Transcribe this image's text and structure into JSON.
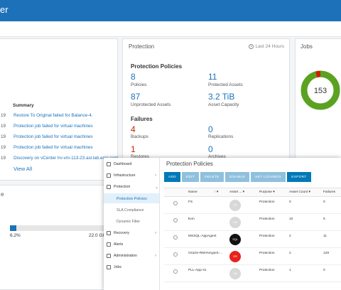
{
  "header": {
    "title": "er"
  },
  "protection": {
    "title": "Protection",
    "range": "Last 24 Hours",
    "policies_section": "Protection Policies",
    "policies_count": "8",
    "policies_label": "Policies",
    "protected_count": "11",
    "protected_label": "Protected Assets",
    "unprotected_count": "87",
    "unprotected_label": "Unprotected Assets",
    "capacity_value": "3.2 TiB",
    "capacity_label": "Asset Capacity",
    "failures_section": "Failures",
    "backups_count": "4",
    "backups_label": "Backups",
    "replications_count": "0",
    "replications_label": "Replications",
    "restores_count": "1",
    "restores_label": "Restores",
    "archives_count": "0",
    "archives_label": "Archives"
  },
  "jobs": {
    "title": "Jobs",
    "total": "153",
    "success_fraction": 0.96,
    "color_ok": "#5aa220",
    "color_fail": "#c92100"
  },
  "activity": {
    "summary_header": "Summary",
    "rows": [
      {
        "yr": "19",
        "text": "Restore To Original failed for Balance-4."
      },
      {
        "yr": "19",
        "text": "Protection job failed for virtual machines"
      },
      {
        "yr": "19",
        "text": "Protection job failed for virtual machines"
      },
      {
        "yr": "19",
        "text": "Protection job failed for virtual machines"
      },
      {
        "yr": "19",
        "text": "Discovery on vCenter lrv-vm-113-23.asl.lab.emc.com..."
      }
    ],
    "view_all": "View All"
  },
  "storage": {
    "title": "e",
    "used_pct": "6.2%",
    "total": "22.0 GI",
    "used_fraction": 0.062
  },
  "overlay": {
    "nav": {
      "dashboard": "Dashboard",
      "infrastructure": "Infrastructure",
      "protection": "Protection",
      "protection_policies": "Protection Policies",
      "sla_compliance": "SLA Compliance",
      "dynamic_filter": "Dynamic Filter",
      "recovery": "Recovery",
      "alerts": "Alerts",
      "administration": "Administration",
      "jobs": "Jobs"
    },
    "title": "Protection Policies",
    "toolbar": {
      "add": "ADD",
      "edit": "EDIT",
      "delete": "DELETE",
      "disable": "DISABLE",
      "set_lockbox": "SET LOCKBOX",
      "export": "EXPORT"
    },
    "columns": {
      "name": "Name",
      "asset": "Asset ...",
      "purpose": "Purpose",
      "asset_count": "Asset Count",
      "failures": "Failures"
    },
    "rows": [
      {
        "name": "FS",
        "badge": "FS",
        "badge_color": "#d8d8d8",
        "purpose": "Protection",
        "count": "0",
        "failures": "0"
      },
      {
        "name": "kvm",
        "badge": "VM",
        "badge_color": "#d8d8d8",
        "purpose": "Protection",
        "count": "10",
        "failures": "5"
      },
      {
        "name": "MSSQL-AppAgent",
        "badge": "SQL",
        "badge_color": "#111111",
        "purpose": "Protection",
        "count": "2",
        "failures": "11"
      },
      {
        "name": "Oracle-RMANAgent-...",
        "badge": "OR",
        "badge_color": "#e8211d",
        "purpose": "Protection",
        "count": "2",
        "failures": "129"
      },
      {
        "name": "PLL-App-41",
        "badge": "VM",
        "badge_color": "#d8d8d8",
        "purpose": "Protection",
        "count": "1",
        "failures": "0"
      }
    ]
  }
}
